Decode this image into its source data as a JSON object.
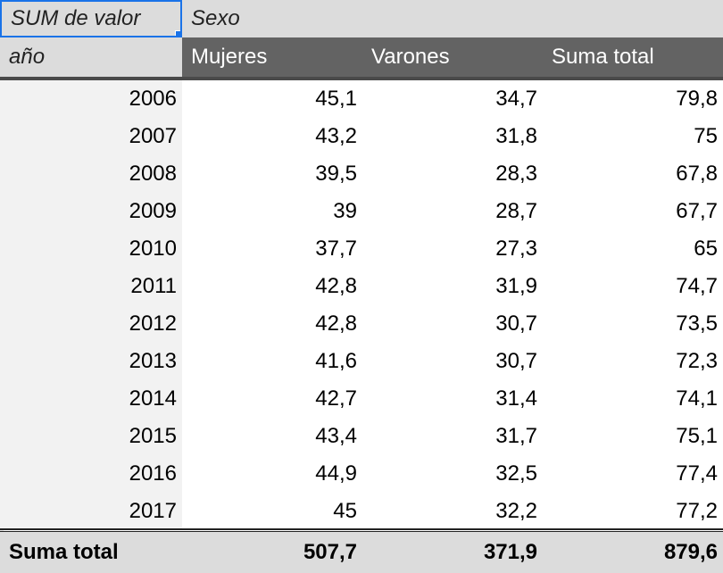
{
  "pivot": {
    "corner_label": "SUM de valor",
    "column_field": "Sexo",
    "row_field": "año",
    "columns": [
      "Mujeres",
      "Varones",
      "Suma total"
    ],
    "rows": [
      {
        "year": "2006",
        "mujeres": "45,1",
        "varones": "34,7",
        "total": "79,8"
      },
      {
        "year": "2007",
        "mujeres": "43,2",
        "varones": "31,8",
        "total": "75"
      },
      {
        "year": "2008",
        "mujeres": "39,5",
        "varones": "28,3",
        "total": "67,8"
      },
      {
        "year": "2009",
        "mujeres": "39",
        "varones": "28,7",
        "total": "67,7"
      },
      {
        "year": "2010",
        "mujeres": "37,7",
        "varones": "27,3",
        "total": "65"
      },
      {
        "year": "2011",
        "mujeres": "42,8",
        "varones": "31,9",
        "total": "74,7"
      },
      {
        "year": "2012",
        "mujeres": "42,8",
        "varones": "30,7",
        "total": "73,5"
      },
      {
        "year": "2013",
        "mujeres": "41,6",
        "varones": "30,7",
        "total": "72,3"
      },
      {
        "year": "2014",
        "mujeres": "42,7",
        "varones": "31,4",
        "total": "74,1"
      },
      {
        "year": "2015",
        "mujeres": "43,4",
        "varones": "31,7",
        "total": "75,1"
      },
      {
        "year": "2016",
        "mujeres": "44,9",
        "varones": "32,5",
        "total": "77,4"
      },
      {
        "year": "2017",
        "mujeres": "45",
        "varones": "32,2",
        "total": "77,2"
      }
    ],
    "grand_total": {
      "label": "Suma total",
      "mujeres": "507,7",
      "varones": "371,9",
      "total": "879,6"
    }
  }
}
